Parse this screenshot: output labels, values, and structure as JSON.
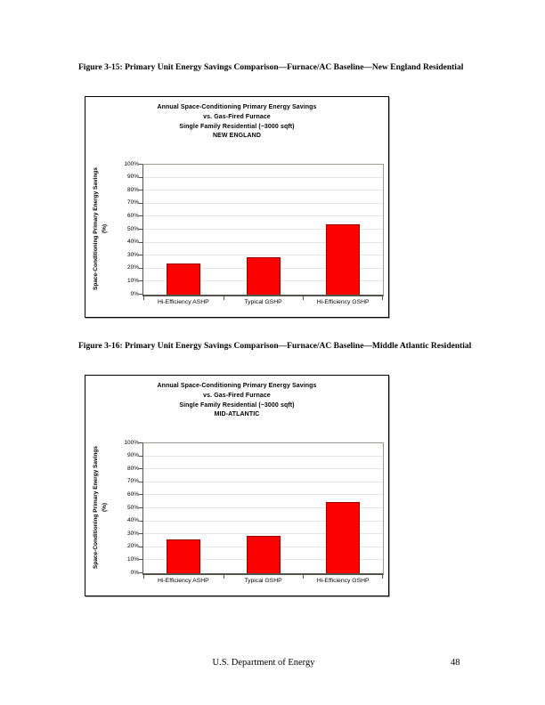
{
  "page": {
    "footer_center": "U.S. Department of Energy",
    "page_number": "48"
  },
  "figures": [
    {
      "caption": "Figure 3-15: Primary Unit Energy Savings Comparison—Furnace/AC Baseline—New England Residential"
    },
    {
      "caption": "Figure 3-16: Primary Unit Energy Savings Comparison—Furnace/AC Baseline—Middle Atlantic Residential"
    }
  ],
  "chart_data": [
    {
      "type": "bar",
      "title_lines": [
        "Annual Space-Conditioning Primary Energy Savings",
        "vs. Gas-Fired Furnace",
        "Single Family Residential (~3000 sqft)",
        "NEW ENGLAND"
      ],
      "categories": [
        "Hi-Efficiency ASHP",
        "Typical GSHP",
        "Hi-Efficiency GSHP"
      ],
      "values": [
        24,
        29,
        54
      ],
      "ylabel": "Space-Conditioning Primary Energy Savings",
      "ylabel_unit": "(%)",
      "ylim": [
        0,
        100
      ],
      "ytick_step": 10,
      "ytick_suffix": "%",
      "grid": "horizontal",
      "legend": "none",
      "bar_color": "#fb0200",
      "bar_border_color": "#990000"
    },
    {
      "type": "bar",
      "title_lines": [
        "Annual Space-Conditioning Primary Energy Savings",
        "vs. Gas-Fired Furnace",
        "Single Family Residential (~3000 sqft)",
        "MID-ATLANTIC"
      ],
      "categories": [
        "Hi-Efficiency ASHP",
        "Typical GSHP",
        "Hi-Efficiency GSHP"
      ],
      "values": [
        26,
        29,
        55
      ],
      "ylabel": "Space-Conditioning Primary Energy Savings",
      "ylabel_unit": "(%)",
      "ylim": [
        0,
        100
      ],
      "ytick_step": 10,
      "ytick_suffix": "%",
      "grid": "horizontal",
      "legend": "none",
      "bar_color": "#fb0200",
      "bar_border_color": "#990000"
    }
  ]
}
